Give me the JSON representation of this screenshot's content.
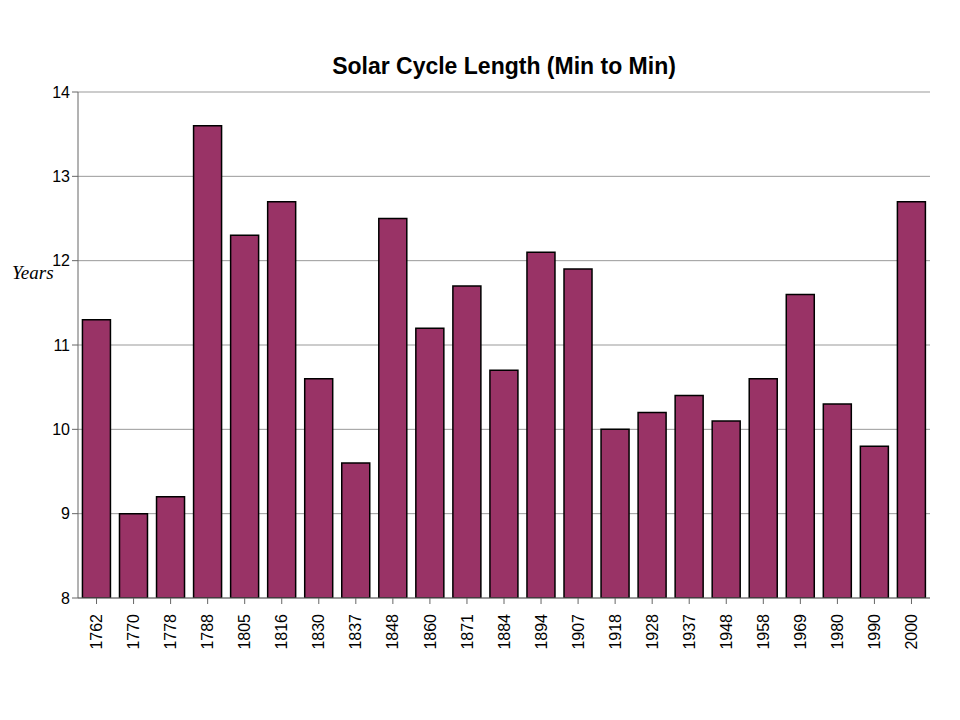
{
  "chart_data": {
    "type": "bar",
    "title": "Solar Cycle Length (Min to Min)",
    "y_label": "Years",
    "categories": [
      "1762",
      "1770",
      "1778",
      "1788",
      "1805",
      "1816",
      "1830",
      "1837",
      "1848",
      "1860",
      "1871",
      "1884",
      "1894",
      "1907",
      "1918",
      "1928",
      "1937",
      "1948",
      "1958",
      "1969",
      "1980",
      "1990",
      "2000"
    ],
    "values": [
      11.3,
      9.0,
      9.2,
      13.6,
      12.3,
      12.7,
      10.6,
      9.6,
      12.5,
      11.2,
      11.7,
      10.7,
      12.1,
      11.9,
      10.0,
      10.2,
      10.4,
      10.1,
      10.6,
      11.6,
      10.3,
      9.8,
      12.7
    ],
    "color": "#993366",
    "ylim": [
      8,
      14
    ],
    "yticks": [
      8,
      9,
      10,
      11,
      12,
      13,
      14
    ],
    "grid": true
  }
}
